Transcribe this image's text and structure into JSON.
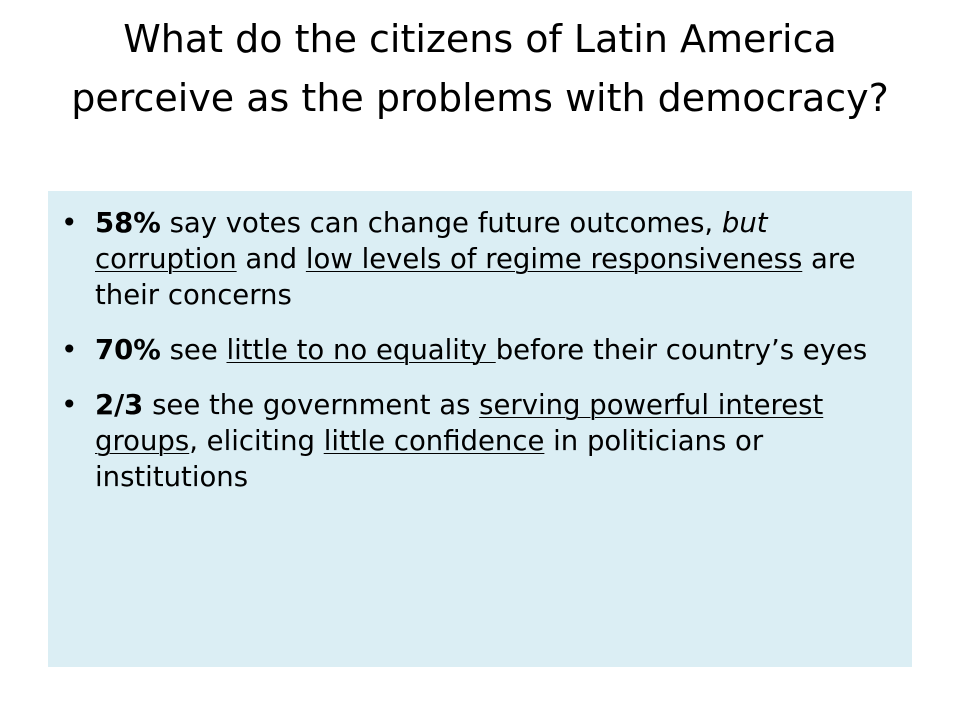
{
  "slide": {
    "title": "What do the citizens of Latin America perceive as the problems with democracy?",
    "background_color": "#ffffff",
    "content_background_color": "#dbeef4",
    "bullet_glyph": "•",
    "bullets": [
      {
        "segments": [
          {
            "text": "58%",
            "style": "bold"
          },
          {
            "text": " say votes can change future outcomes, ",
            "style": "normal"
          },
          {
            "text": "but",
            "style": "italic"
          },
          {
            "text": " ",
            "style": "normal"
          },
          {
            "text": "corruption",
            "style": "underline"
          },
          {
            "text": " and ",
            "style": "normal"
          },
          {
            "text": "low levels of regime responsiveness",
            "style": "underline"
          },
          {
            "text": " are their concerns",
            "style": "normal"
          }
        ]
      },
      {
        "segments": [
          {
            "text": "70%",
            "style": "bold"
          },
          {
            "text": " see ",
            "style": "normal"
          },
          {
            "text": "little to no equality ",
            "style": "underline"
          },
          {
            "text": "before their country’s eyes",
            "style": "normal"
          }
        ]
      },
      {
        "segments": [
          {
            "text": "2/3",
            "style": "bold"
          },
          {
            "text": " see the government as ",
            "style": "normal"
          },
          {
            "text": "serving powerful interest groups",
            "style": "underline"
          },
          {
            "text": ", eliciting ",
            "style": "normal"
          },
          {
            "text": "little confidence",
            "style": "underline"
          },
          {
            "text": " in politicians or institutions",
            "style": "normal"
          }
        ]
      }
    ]
  }
}
